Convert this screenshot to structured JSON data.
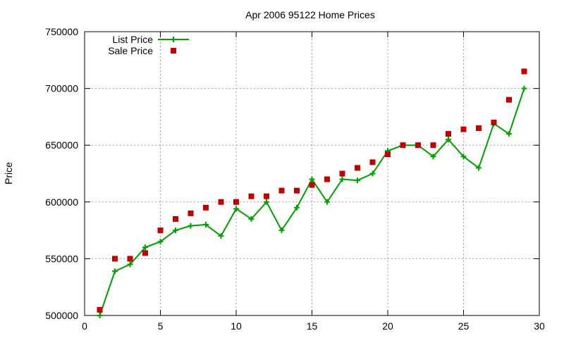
{
  "chart_data": {
    "type": "line",
    "title": "Apr 2006 95122 Home Prices",
    "xlabel": "",
    "ylabel": "Price",
    "xlim": [
      0,
      30
    ],
    "ylim": [
      500000,
      750000
    ],
    "xticks": [
      0,
      5,
      10,
      15,
      20,
      25,
      30
    ],
    "yticks": [
      500000,
      550000,
      600000,
      650000,
      700000,
      750000
    ],
    "grid": true,
    "legend": "top-left",
    "series": [
      {
        "name": "List Price",
        "style": "line-plus",
        "color": "#00a000",
        "x": [
          1,
          2,
          3,
          4,
          5,
          6,
          7,
          8,
          9,
          10,
          11,
          12,
          13,
          14,
          15,
          16,
          17,
          18,
          19,
          20,
          21,
          22,
          23,
          24,
          25,
          26,
          27,
          28,
          29
        ],
        "y": [
          500000,
          539000,
          545000,
          560000,
          565000,
          575000,
          579000,
          580000,
          570000,
          594000,
          585000,
          600000,
          575000,
          595000,
          620000,
          600000,
          620000,
          619000,
          625000,
          645000,
          650000,
          650000,
          640000,
          655000,
          640000,
          630000,
          669000,
          660000,
          700000
        ]
      },
      {
        "name": "Sale Price",
        "style": "square",
        "color": "#c00000",
        "x": [
          1,
          2,
          3,
          4,
          5,
          6,
          7,
          8,
          9,
          10,
          11,
          12,
          13,
          14,
          15,
          16,
          17,
          18,
          19,
          20,
          21,
          22,
          23,
          24,
          25,
          26,
          27,
          28,
          29
        ],
        "y": [
          505000,
          550000,
          550000,
          555000,
          575000,
          585000,
          590000,
          595000,
          600000,
          600000,
          605000,
          605000,
          610000,
          610000,
          615000,
          620000,
          625000,
          630000,
          635000,
          642000,
          650000,
          650000,
          650000,
          660000,
          664000,
          665000,
          670000,
          690000,
          715000
        ]
      }
    ]
  }
}
